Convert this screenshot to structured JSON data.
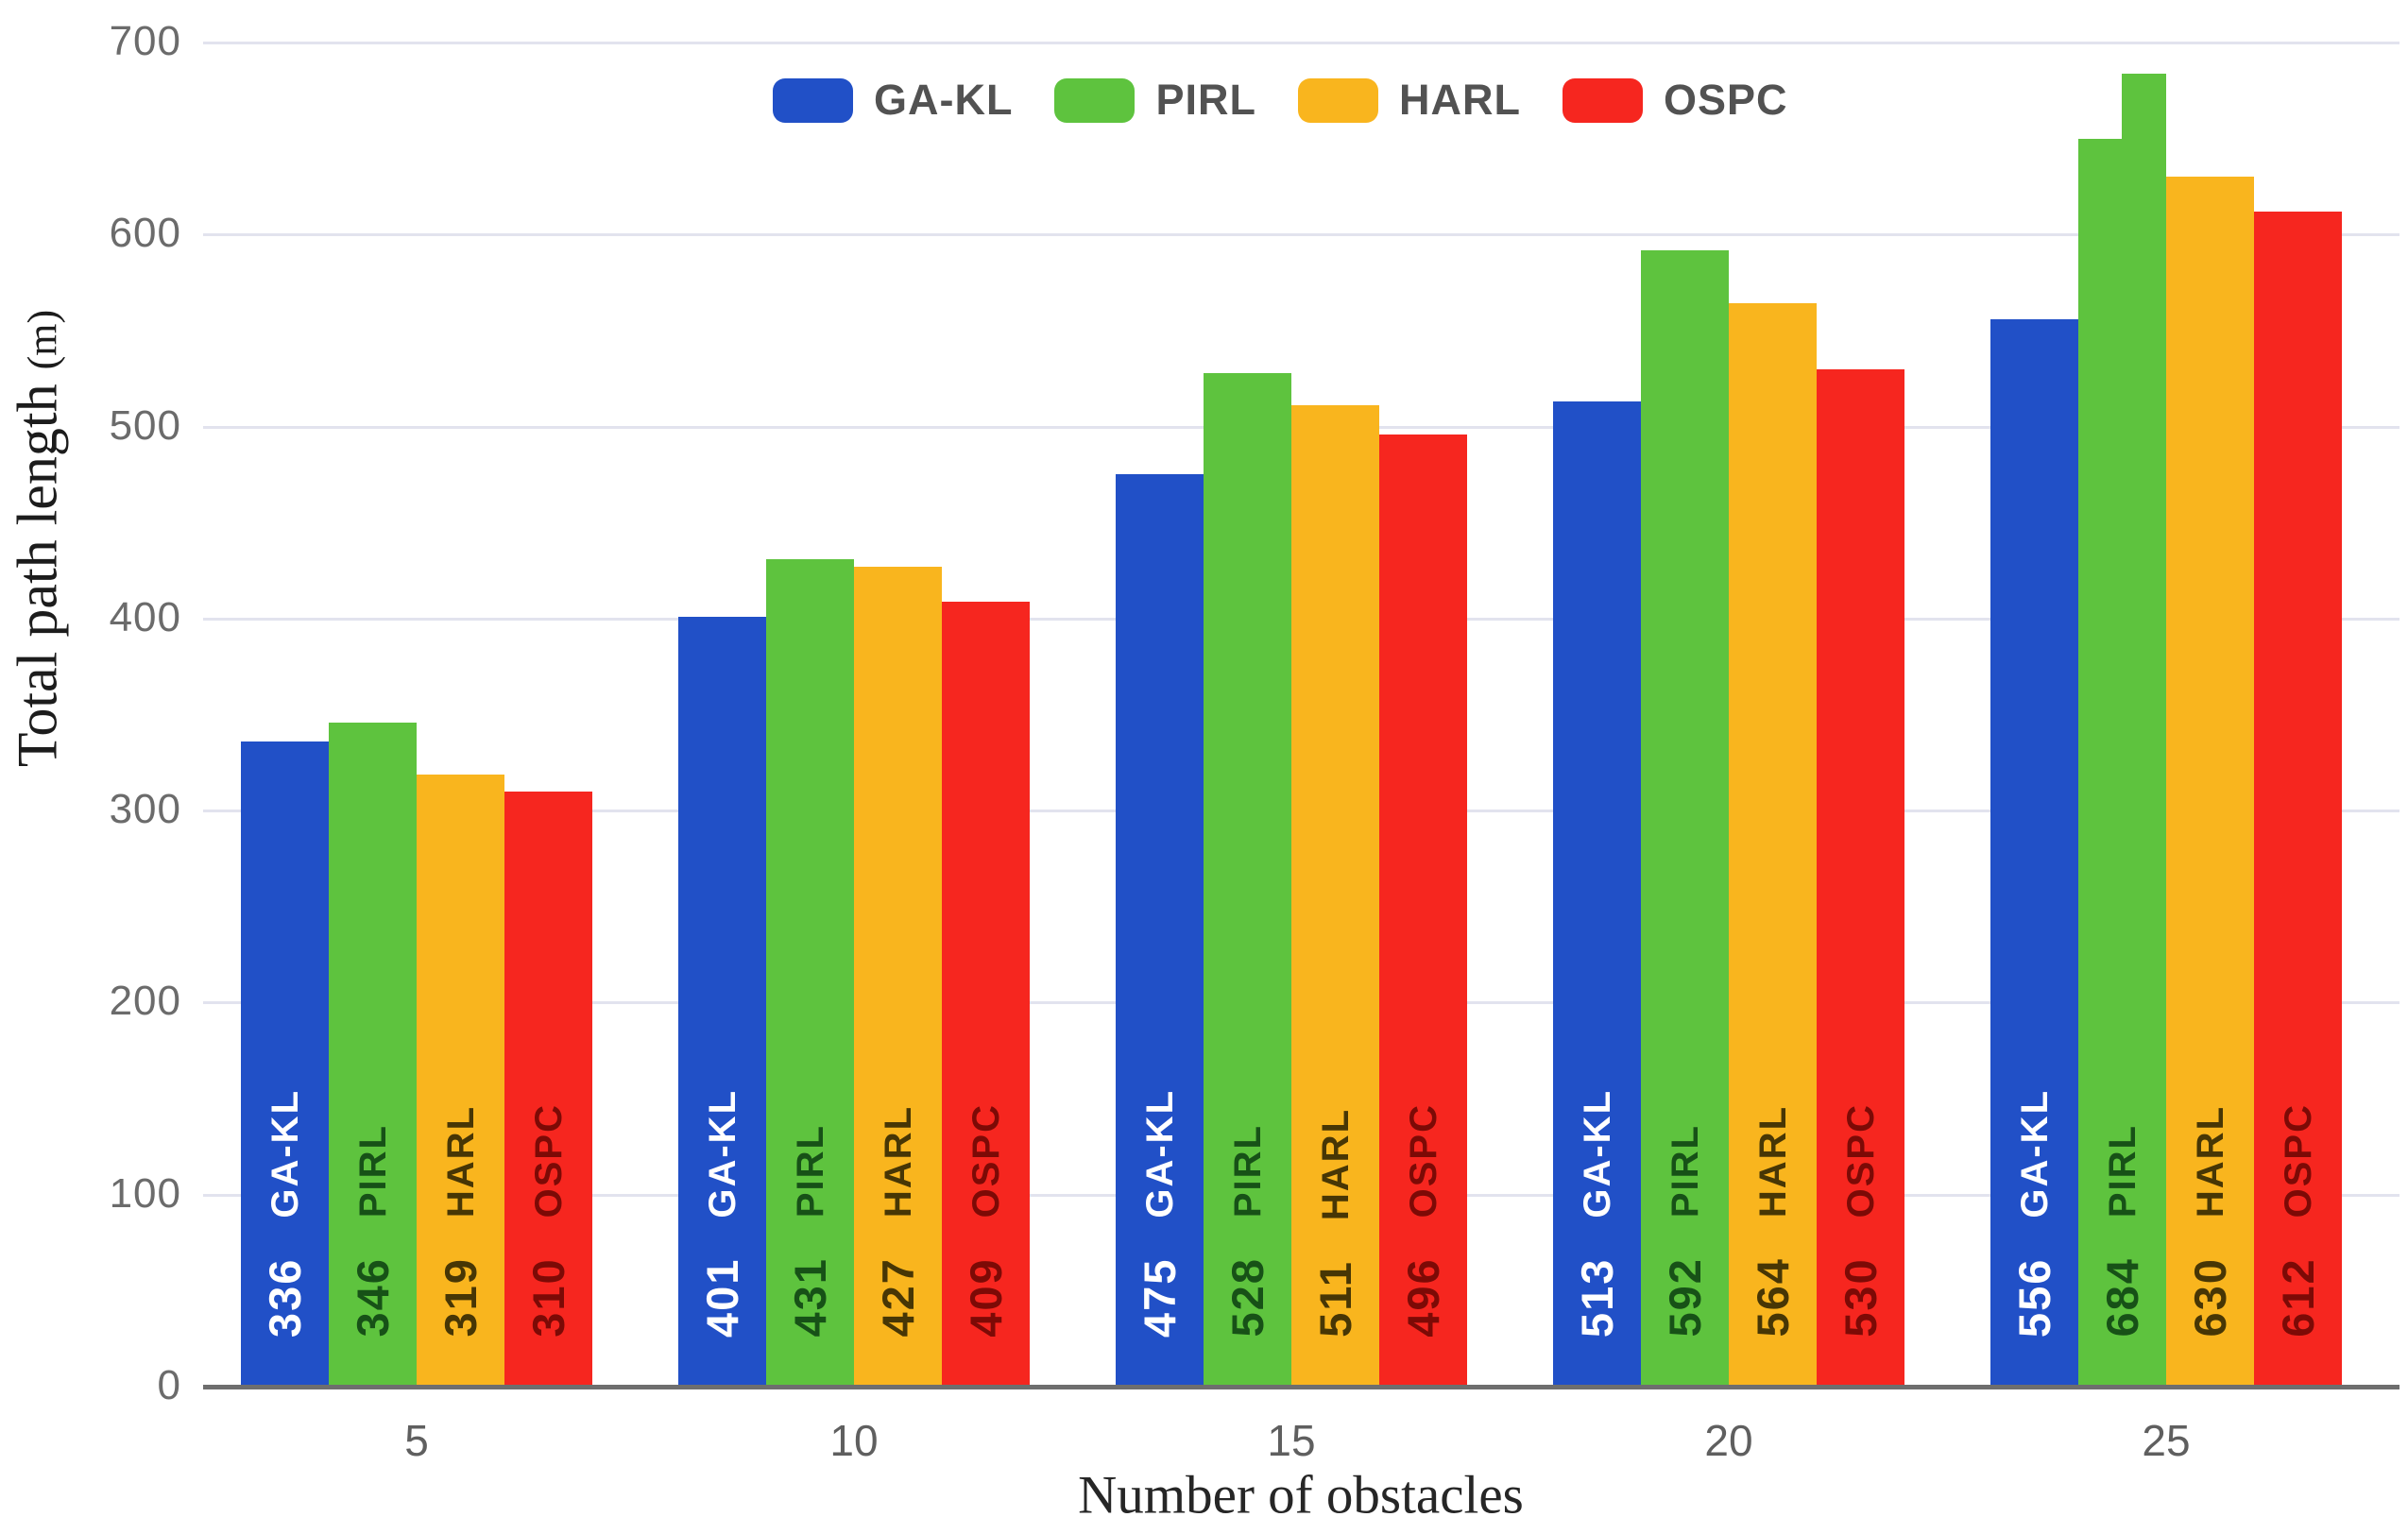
{
  "chart_data": {
    "type": "bar",
    "title": "",
    "xlabel": "Number of obstacles",
    "ylabel": "Total path length (m)",
    "ylabel_main": "Total path length ",
    "ylabel_unit": "(m)",
    "categories": [
      "5",
      "10",
      "15",
      "20",
      "25"
    ],
    "series": [
      {
        "name": "GA-KL",
        "color": "#2150c7",
        "label_color": "#ffffff",
        "values": [
          336,
          401,
          475,
          513,
          556
        ]
      },
      {
        "name": "PIRL",
        "color": "#5ec33e",
        "label_color": "#175117",
        "values": [
          346,
          431,
          528,
          592,
          684
        ]
      },
      {
        "name": "HARL",
        "color": "#f9b51e",
        "label_color": "#473605",
        "values": [
          319,
          427,
          511,
          564,
          630
        ]
      },
      {
        "name": "OSPC",
        "color": "#f6261f",
        "label_color": "#7c0a06",
        "values": [
          310,
          409,
          496,
          530,
          612
        ]
      }
    ],
    "ylim": [
      0,
      700
    ],
    "yticks": [
      0,
      100,
      200,
      300,
      400,
      500,
      600,
      700
    ],
    "grid": true,
    "legend_position": "top",
    "value_labels_inside_bars": true,
    "render_artifact": {
      "note": "PIRL bar of group 25 shows a two-step top (ghost step at ~650 on its left half, full 684 on right half)",
      "group_index": 4,
      "series": "PIRL",
      "left_half_value": 650,
      "right_half_value": 684
    }
  },
  "colors": {
    "background": "#ffffff",
    "gridline": "#e2e3ee",
    "axis_line": "#6e6e6e",
    "y_tick_label": "#6b6b6b",
    "x_tick_label": "#5f5f5f",
    "legend_label": "#525252",
    "axis_title": "#1c1c1c"
  }
}
